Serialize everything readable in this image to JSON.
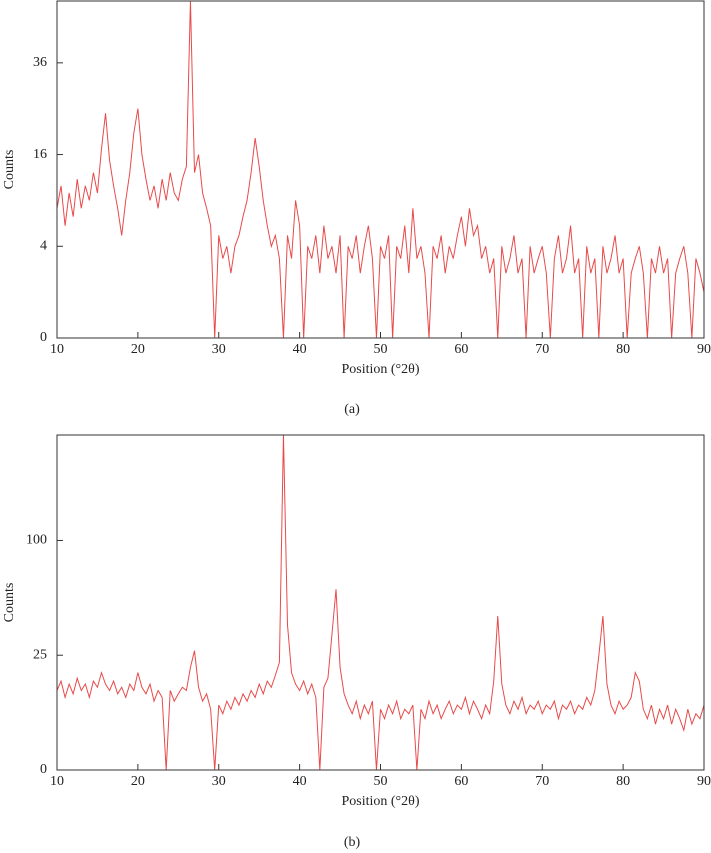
{
  "chart_data": [
    {
      "type": "line",
      "yscale": "sqrt",
      "xlabel": "Position (°2θ)",
      "ylabel": "Counts",
      "caption": "(a)",
      "xlim": [
        10,
        90
      ],
      "xticks": [
        10,
        20,
        30,
        40,
        50,
        60,
        70,
        80,
        90
      ],
      "ylim": [
        0,
        54
      ],
      "yticks": [
        0,
        4,
        16,
        36
      ],
      "x": [
        10,
        10.5,
        11,
        11.5,
        12,
        12.5,
        13,
        13.5,
        14,
        14.5,
        15,
        15.5,
        16,
        16.5,
        17,
        17.5,
        18,
        18.5,
        19,
        19.5,
        20,
        20.5,
        21,
        21.5,
        22,
        22.5,
        23,
        23.5,
        24,
        24.5,
        25,
        25.5,
        26,
        26.5,
        27,
        27.5,
        28,
        28.5,
        29,
        29.5,
        30,
        30.5,
        31,
        31.5,
        32,
        32.5,
        33,
        33.5,
        34,
        34.5,
        35,
        35.5,
        36,
        36.5,
        37,
        37.5,
        38,
        38.5,
        39,
        39.5,
        40,
        40.5,
        41,
        41.5,
        42,
        42.5,
        43,
        43.5,
        44,
        44.5,
        45,
        45.5,
        46,
        46.5,
        47,
        47.5,
        48,
        48.5,
        49,
        49.5,
        50,
        50.5,
        51,
        51.5,
        52,
        52.5,
        53,
        53.5,
        54,
        54.5,
        55,
        55.5,
        56,
        56.5,
        57,
        57.5,
        58,
        58.5,
        59,
        59.5,
        60,
        60.5,
        61,
        61.5,
        62,
        62.5,
        63,
        63.5,
        64,
        64.5,
        65,
        65.5,
        66,
        66.5,
        67,
        67.5,
        68,
        68.5,
        69,
        69.5,
        70,
        70.5,
        71,
        71.5,
        72,
        72.5,
        73,
        73.5,
        74,
        74.5,
        75,
        75.5,
        76,
        76.5,
        77,
        77.5,
        78,
        78.5,
        79,
        79.5,
        80,
        80.5,
        81,
        81.5,
        82,
        82.5,
        83,
        83.5,
        84,
        84.5,
        85,
        85.5,
        86,
        86.5,
        87,
        87.5,
        88,
        88.5,
        89,
        89.5,
        90
      ],
      "series": [
        {
          "name": "a",
          "color": "#e84a4a",
          "values": [
            8,
            11,
            6,
            10,
            7,
            12,
            8,
            11,
            9,
            13,
            10,
            17,
            24,
            15,
            11,
            8,
            5,
            9,
            13,
            20,
            25,
            16,
            12,
            9,
            11,
            8,
            12,
            9,
            13,
            10,
            9,
            12,
            14,
            54,
            13,
            16,
            10,
            8,
            6,
            0,
            5,
            3,
            4,
            2,
            4,
            5,
            7,
            9,
            13,
            19,
            14,
            9,
            6,
            4,
            5,
            3,
            0,
            5,
            3,
            9,
            6,
            0,
            4,
            3,
            5,
            2,
            6,
            3,
            4,
            2,
            5,
            0,
            4,
            3,
            5,
            2,
            4,
            6,
            3,
            0,
            4,
            3,
            5,
            0,
            4,
            3,
            6,
            2,
            8,
            3,
            4,
            2,
            0,
            4,
            3,
            5,
            2,
            4,
            3,
            5,
            7,
            4,
            8,
            5,
            6,
            3,
            4,
            2,
            3,
            0,
            4,
            2,
            3,
            5,
            2,
            3,
            0,
            4,
            2,
            3,
            4,
            2,
            0,
            3,
            5,
            2,
            3,
            6,
            2,
            3,
            0,
            4,
            2,
            3,
            0,
            4,
            2,
            3,
            5,
            2,
            3,
            0,
            2,
            3,
            4,
            2,
            0,
            3,
            2,
            4,
            2,
            3,
            0,
            2,
            3,
            4,
            2,
            0,
            3,
            2,
            1
          ]
        }
      ]
    },
    {
      "type": "line",
      "yscale": "sqrt",
      "xlabel": "Position (°2θ)",
      "ylabel": "Counts",
      "caption": "(b)",
      "xlim": [
        10,
        90
      ],
      "xticks": [
        10,
        20,
        30,
        40,
        50,
        60,
        70,
        80,
        90
      ],
      "ylim": [
        0,
        213
      ],
      "yticks": [
        0,
        25,
        100
      ],
      "x": [
        10,
        10.5,
        11,
        11.5,
        12,
        12.5,
        13,
        13.5,
        14,
        14.5,
        15,
        15.5,
        16,
        16.5,
        17,
        17.5,
        18,
        18.5,
        19,
        19.5,
        20,
        20.5,
        21,
        21.5,
        22,
        22.5,
        23,
        23.5,
        24,
        24.5,
        25,
        25.5,
        26,
        26.5,
        27,
        27.5,
        28,
        28.5,
        29,
        29.5,
        30,
        30.5,
        31,
        31.5,
        32,
        32.5,
        33,
        33.5,
        34,
        34.5,
        35,
        35.5,
        36,
        36.5,
        37,
        37.5,
        38,
        38.5,
        39,
        39.5,
        40,
        40.5,
        41,
        41.5,
        42,
        42.5,
        43,
        43.5,
        44,
        44.5,
        45,
        45.5,
        46,
        46.5,
        47,
        47.5,
        48,
        48.5,
        49,
        49.5,
        50,
        50.5,
        51,
        51.5,
        52,
        52.5,
        53,
        53.5,
        54,
        54.5,
        55,
        55.5,
        56,
        56.5,
        57,
        57.5,
        58,
        58.5,
        59,
        59.5,
        60,
        60.5,
        61,
        61.5,
        62,
        62.5,
        63,
        63.5,
        64,
        64.5,
        65,
        65.5,
        66,
        66.5,
        67,
        67.5,
        68,
        68.5,
        69,
        69.5,
        70,
        70.5,
        71,
        71.5,
        72,
        72.5,
        73,
        73.5,
        74,
        74.5,
        75,
        75.5,
        76,
        76.5,
        77,
        77.5,
        78,
        78.5,
        79,
        79.5,
        80,
        80.5,
        81,
        81.5,
        82,
        82.5,
        83,
        83.5,
        84,
        84.5,
        85,
        85.5,
        86,
        86.5,
        87,
        87.5,
        88,
        88.5,
        89,
        89.5,
        90
      ],
      "series": [
        {
          "name": "b",
          "color": "#e84a4a",
          "values": [
            12,
            15,
            10,
            14,
            11,
            16,
            12,
            14,
            10,
            15,
            13,
            18,
            14,
            12,
            15,
            11,
            13,
            10,
            14,
            12,
            18,
            13,
            11,
            14,
            9,
            12,
            10,
            0,
            12,
            9,
            11,
            13,
            12,
            20,
            27,
            13,
            9,
            11,
            7,
            0,
            8,
            6,
            9,
            7,
            10,
            8,
            11,
            9,
            12,
            10,
            14,
            11,
            15,
            13,
            17,
            22,
            213,
            40,
            18,
            14,
            12,
            15,
            11,
            14,
            10,
            0,
            13,
            16,
            35,
            62,
            20,
            11,
            8,
            6,
            9,
            5,
            8,
            6,
            9,
            0,
            7,
            5,
            8,
            6,
            9,
            5,
            7,
            6,
            8,
            0,
            7,
            5,
            9,
            6,
            8,
            5,
            7,
            9,
            6,
            8,
            7,
            10,
            6,
            9,
            7,
            5,
            8,
            6,
            15,
            45,
            14,
            8,
            6,
            9,
            7,
            10,
            6,
            8,
            7,
            9,
            6,
            8,
            7,
            9,
            5,
            8,
            7,
            9,
            6,
            8,
            7,
            10,
            8,
            12,
            25,
            45,
            14,
            8,
            6,
            9,
            7,
            8,
            10,
            18,
            15,
            7,
            5,
            8,
            4,
            7,
            5,
            8,
            4,
            7,
            5,
            3,
            7,
            4,
            6,
            5,
            8
          ]
        }
      ]
    }
  ]
}
